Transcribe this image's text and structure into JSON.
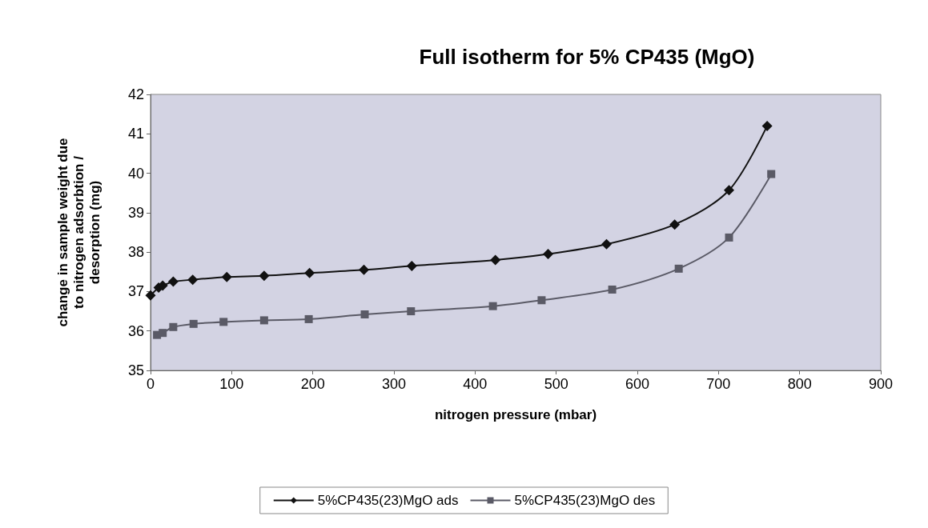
{
  "chart_data": {
    "type": "line",
    "title": "Full isotherm for 5% CP435 (MgO)",
    "xlabel": "nitrogen pressure (mbar)",
    "ylabel": "change in sample weight due to nitrogen adsorbtion / desorption (mg)",
    "xlim": [
      0,
      900
    ],
    "xticks": [
      0,
      100,
      200,
      300,
      400,
      500,
      600,
      700,
      800,
      900
    ],
    "ylim": [
      35,
      42
    ],
    "yticks": [
      35,
      36,
      37,
      38,
      39,
      40,
      41,
      42
    ],
    "grid": false,
    "legend": "bottom",
    "series": [
      {
        "name": "5%CP435(23)MgO ads",
        "color": "#111111",
        "marker": "diamond",
        "x": [
          0,
          10,
          15,
          28,
          52,
          94,
          140,
          196,
          263,
          322,
          425,
          490,
          562,
          646,
          713,
          760
        ],
        "values": [
          36.9,
          37.1,
          37.15,
          37.25,
          37.3,
          37.37,
          37.4,
          37.47,
          37.55,
          37.65,
          37.8,
          37.95,
          38.2,
          38.7,
          39.57,
          41.2
        ]
      },
      {
        "name": "5%CP435(23)MgO des",
        "color": "#5a5a66",
        "marker": "square",
        "x": [
          8,
          15,
          28,
          53,
          90,
          140,
          195,
          264,
          321,
          422,
          482,
          569,
          651,
          713,
          765
        ],
        "values": [
          35.9,
          35.95,
          36.1,
          36.18,
          36.23,
          36.27,
          36.3,
          36.42,
          36.5,
          36.63,
          36.78,
          37.05,
          37.58,
          38.37,
          39.98
        ]
      }
    ]
  }
}
